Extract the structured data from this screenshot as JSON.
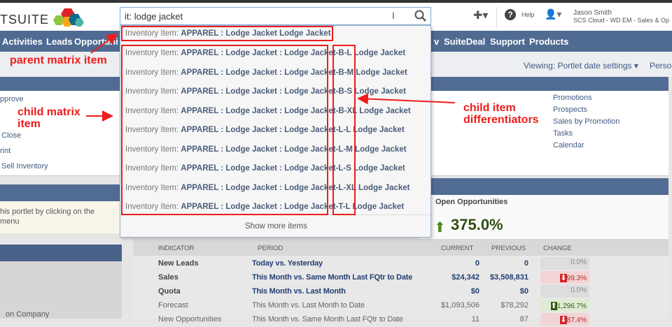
{
  "header": {
    "logo_text": "TSUITE",
    "search_value": "it: lodge jacket",
    "help_label": "Help",
    "user_name": "Jason Smith",
    "user_role": "SCS Cloud - WD EM - Sales & Op"
  },
  "nav": {
    "items": [
      "Activities",
      "Leads",
      "Opportuni",
      "v",
      "SuiteDeal",
      "Support",
      "Products"
    ]
  },
  "subbar": {
    "viewing_label": "Viewing: Portlet date settings",
    "personalize": "Perso"
  },
  "left_links": [
    "pprove",
    "Close",
    "rint",
    "Sell Inventory"
  ],
  "right_links": [
    "Promotions",
    "Prospects",
    "Sales by Promotion",
    "Tasks",
    "Calendar"
  ],
  "left_notice": "his portlet by clicking on the menu",
  "left_bottom": "on Company",
  "dropdown": {
    "parent": {
      "prefix": "Inventory Item: ",
      "name": "APPAREL : Lodge Jacket Lodge Jacket"
    },
    "children": [
      {
        "prefix": "Inventory Item: ",
        "name": "APPAREL : Lodge Jacket : Lodge Jacket-B-L Lodge Jacket"
      },
      {
        "prefix": "Inventory Item: ",
        "name": "APPAREL : Lodge Jacket : Lodge Jacket-B-M Lodge Jacket"
      },
      {
        "prefix": "Inventory Item: ",
        "name": "APPAREL : Lodge Jacket : Lodge Jacket-B-S Lodge Jacket"
      },
      {
        "prefix": "Inventory Item: ",
        "name": "APPAREL : Lodge Jacket : Lodge Jacket-B-XL Lodge Jacket"
      },
      {
        "prefix": "Inventory Item: ",
        "name": "APPAREL : Lodge Jacket : Lodge Jacket-L-L Lodge Jacket"
      },
      {
        "prefix": "Inventory Item: ",
        "name": "APPAREL : Lodge Jacket : Lodge Jacket-L-M Lodge Jacket"
      },
      {
        "prefix": "Inventory Item: ",
        "name": "APPAREL : Lodge Jacket : Lodge Jacket-L-S Lodge Jacket"
      },
      {
        "prefix": "Inventory Item: ",
        "name": "APPAREL : Lodge Jacket : Lodge Jacket-L-XL Lodge Jacket"
      },
      {
        "prefix": "Inventory Item: ",
        "name": "APPAREL : Lodge Jacket : Lodge Jacket-T-L Lodge Jacket"
      }
    ],
    "show_more": "Show more items"
  },
  "annotations": {
    "parent": "parent matrix item",
    "child": "child matrix item",
    "differentiators": "child item differentiators",
    "color": "#ee1c1c"
  },
  "kpi": {
    "title": "Open Opportunities",
    "headline": "375.0%",
    "headers": [
      "INDICATOR",
      "PERIOD",
      "CURRENT",
      "PREVIOUS",
      "CHANGE"
    ],
    "rows": [
      {
        "indicator": "New Leads",
        "period": "Today vs. Yesterday",
        "current": "0",
        "previous": "0",
        "change": "0.0%",
        "trend": "none"
      },
      {
        "indicator": "Sales",
        "period": "This Month vs. Same Month Last FQtr to Date",
        "current": "$24,342",
        "previous": "$3,508,831",
        "change": "99.3%",
        "trend": "down"
      },
      {
        "indicator": "Quota",
        "period": "This Month vs. Last Month",
        "current": "$0",
        "previous": "$0",
        "change": "0.0%",
        "trend": "none"
      },
      {
        "indicator": "Forecast",
        "period": "This Month vs. Last Month to Date",
        "current": "$1,093,506",
        "previous": "$78,292",
        "change": "1,296.7%",
        "trend": "up"
      },
      {
        "indicator": "New Opportunities",
        "period": "This Month vs. Same Month Last FQtr to Date",
        "current": "11",
        "previous": "87",
        "change": "87.4%",
        "trend": "down"
      }
    ]
  }
}
